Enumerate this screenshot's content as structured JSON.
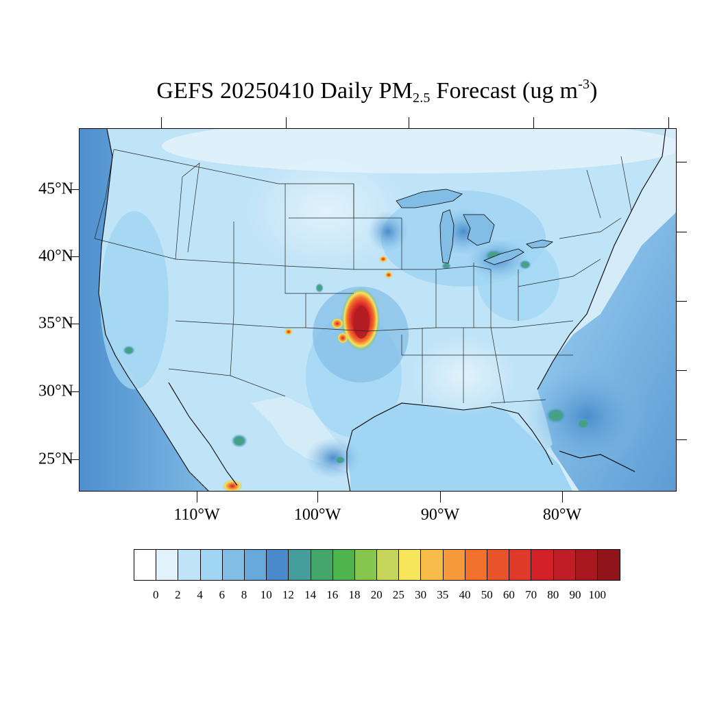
{
  "title": {
    "prefix": "GEFS 20250410 Daily PM",
    "subscript": "2.5",
    "middle": " Forecast (ug m",
    "superscript": "-3",
    "suffix": ")"
  },
  "axes": {
    "lat_labels": [
      "45°N",
      "40°N",
      "35°N",
      "30°N",
      "25°N"
    ],
    "lon_labels": [
      "110°W",
      "100°W",
      "90°W",
      "80°W"
    ]
  },
  "colorbar": {
    "levels": [
      "0",
      "2",
      "4",
      "6",
      "8",
      "10",
      "12",
      "14",
      "16",
      "18",
      "20",
      "25",
      "30",
      "35",
      "40",
      "50",
      "60",
      "70",
      "80",
      "90",
      "100"
    ],
    "colors": [
      "#ffffff",
      "#e1f2fb",
      "#bfe3f7",
      "#a0d5f3",
      "#82bde6",
      "#68a9dc",
      "#4a8ccb",
      "#469e9c",
      "#45a468",
      "#4db34a",
      "#87c64f",
      "#c6d65a",
      "#f7e65b",
      "#f8bd48",
      "#f79a3c",
      "#f2712d",
      "#e8532c",
      "#df3a2a",
      "#d42027",
      "#bf1e26",
      "#a8191f",
      "#8f151b"
    ]
  },
  "map_colors": {
    "ocean_far": "#5b98d3",
    "ocean_mid": "#82bde6",
    "land_base": "#bfe3f7",
    "land_light": "#e1f2fb",
    "land_mid": "#a0d5f3",
    "hot_core": "#c4161c",
    "hot_ring": "#f2712d",
    "warm": "#f7e65b",
    "green": "#4db34a"
  }
}
